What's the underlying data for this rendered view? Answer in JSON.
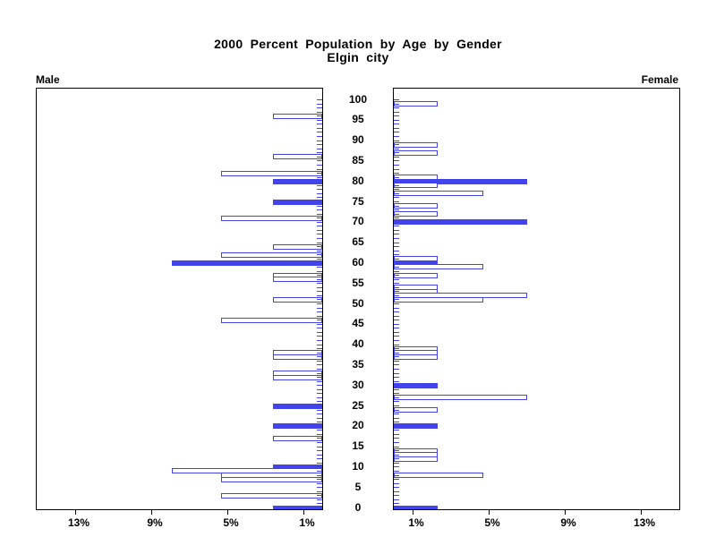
{
  "title": {
    "line1": "2000 Percent Population by Age by Gender",
    "line2": "Elgin city"
  },
  "panels": {
    "male_label": "Male",
    "female_label": "Female"
  },
  "colors": {
    "bar_blue": "#4343ec",
    "axis_black": "#000000",
    "background": "#ffffff"
  },
  "chart_data": {
    "type": "bar",
    "subtype": "population-pyramid",
    "title": "2000 Percent Population by Age by Gender",
    "subtitle": "Elgin city",
    "note_style": "bars for ages divisible by 5 are filled solid blue; all other ages are outlined",
    "age_axis": {
      "min": 0,
      "max": 100,
      "tick_step": 5,
      "tick_labels": [
        "0",
        "5",
        "10",
        "15",
        "20",
        "25",
        "30",
        "35",
        "40",
        "45",
        "50",
        "55",
        "60",
        "65",
        "70",
        "75",
        "80",
        "85",
        "90",
        "95",
        "100"
      ]
    },
    "pct_axis": {
      "tick_values": [
        1,
        5,
        9,
        13
      ],
      "tick_labels": [
        "1%",
        "5%",
        "9%",
        "13%"
      ],
      "male_direction": "right-to-left",
      "female_direction": "left-to-right"
    },
    "series": [
      {
        "name": "Male",
        "unit_pct": 2.63,
        "bars": [
          {
            "age": 96,
            "count": 1,
            "percent": 2.6
          },
          {
            "age": 86,
            "count": 1,
            "percent": 2.6
          },
          {
            "age": 82,
            "count": 2,
            "percent": 5.3
          },
          {
            "age": 80,
            "count": 1,
            "percent": 2.6
          },
          {
            "age": 75,
            "count": 1,
            "percent": 2.6
          },
          {
            "age": 71,
            "count": 2,
            "percent": 5.3
          },
          {
            "age": 64,
            "count": 1,
            "percent": 2.6
          },
          {
            "age": 62,
            "count": 2,
            "percent": 5.3
          },
          {
            "age": 60,
            "count": 3,
            "percent": 7.9
          },
          {
            "age": 57,
            "count": 1,
            "percent": 2.6
          },
          {
            "age": 56,
            "count": 1,
            "percent": 2.6
          },
          {
            "age": 51,
            "count": 1,
            "percent": 2.6
          },
          {
            "age": 46,
            "count": 2,
            "percent": 5.3
          },
          {
            "age": 38,
            "count": 1,
            "percent": 2.6
          },
          {
            "age": 37,
            "count": 1,
            "percent": 2.6
          },
          {
            "age": 33,
            "count": 1,
            "percent": 2.6
          },
          {
            "age": 32,
            "count": 1,
            "percent": 2.6
          },
          {
            "age": 25,
            "count": 1,
            "percent": 2.6
          },
          {
            "age": 20,
            "count": 1,
            "percent": 2.6
          },
          {
            "age": 17,
            "count": 1,
            "percent": 2.6
          },
          {
            "age": 10,
            "count": 1,
            "percent": 2.6
          },
          {
            "age": 9,
            "count": 3,
            "percent": 7.9
          },
          {
            "age": 8,
            "count": 2,
            "percent": 5.3
          },
          {
            "age": 7,
            "count": 2,
            "percent": 5.3
          },
          {
            "age": 3,
            "count": 2,
            "percent": 5.3
          },
          {
            "age": 0,
            "count": 1,
            "percent": 2.6
          }
        ]
      },
      {
        "name": "Female",
        "unit_pct": 2.33,
        "bars": [
          {
            "age": 99,
            "count": 1,
            "percent": 2.3
          },
          {
            "age": 89,
            "count": 1,
            "percent": 2.3
          },
          {
            "age": 87,
            "count": 1,
            "percent": 2.3
          },
          {
            "age": 81,
            "count": 1,
            "percent": 2.3
          },
          {
            "age": 80,
            "count": 3,
            "percent": 7.0
          },
          {
            "age": 79,
            "count": 1,
            "percent": 2.3
          },
          {
            "age": 77,
            "count": 2,
            "percent": 4.7
          },
          {
            "age": 74,
            "count": 1,
            "percent": 2.3
          },
          {
            "age": 72,
            "count": 1,
            "percent": 2.3
          },
          {
            "age": 70,
            "count": 3,
            "percent": 7.0
          },
          {
            "age": 61,
            "count": 1,
            "percent": 2.3
          },
          {
            "age": 60,
            "count": 1,
            "percent": 2.3
          },
          {
            "age": 59,
            "count": 2,
            "percent": 4.7
          },
          {
            "age": 57,
            "count": 1,
            "percent": 2.3
          },
          {
            "age": 54,
            "count": 1,
            "percent": 2.3
          },
          {
            "age": 53,
            "count": 1,
            "percent": 2.3
          },
          {
            "age": 52,
            "count": 3,
            "percent": 7.0
          },
          {
            "age": 51,
            "count": 2,
            "percent": 4.7
          },
          {
            "age": 39,
            "count": 1,
            "percent": 2.3
          },
          {
            "age": 38,
            "count": 1,
            "percent": 2.3
          },
          {
            "age": 37,
            "count": 1,
            "percent": 2.3
          },
          {
            "age": 30,
            "count": 1,
            "percent": 2.3
          },
          {
            "age": 27,
            "count": 3,
            "percent": 7.0
          },
          {
            "age": 24,
            "count": 1,
            "percent": 2.3
          },
          {
            "age": 20,
            "count": 1,
            "percent": 2.3
          },
          {
            "age": 14,
            "count": 1,
            "percent": 2.3
          },
          {
            "age": 13,
            "count": 1,
            "percent": 2.3
          },
          {
            "age": 12,
            "count": 1,
            "percent": 2.3
          },
          {
            "age": 8,
            "count": 2,
            "percent": 4.7
          },
          {
            "age": 0,
            "count": 1,
            "percent": 2.3
          }
        ]
      }
    ]
  }
}
